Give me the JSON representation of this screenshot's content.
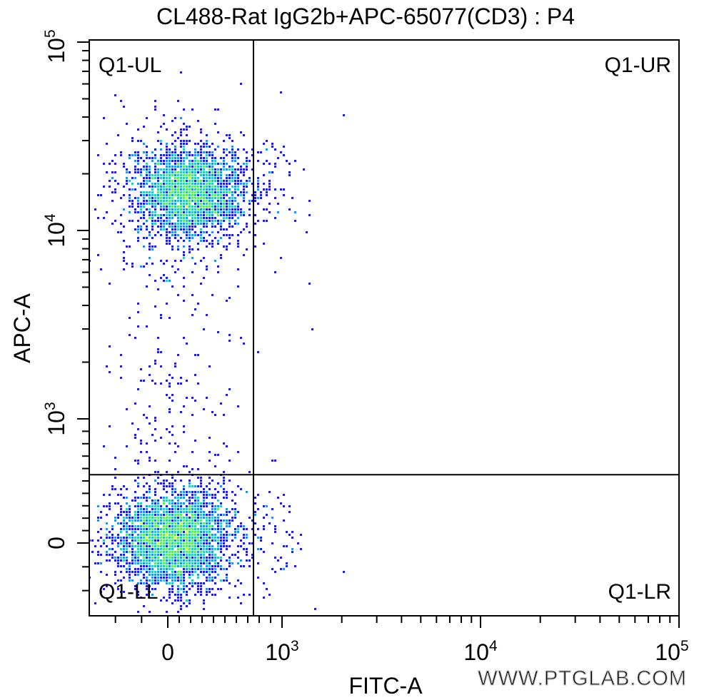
{
  "chart_data": {
    "type": "scatter",
    "title": "CL488-Rat IgG2b+APC-65077(CD3) : P4",
    "xlabel": "FITC-A",
    "ylabel": "APC-A",
    "x_scale": "biexponential",
    "y_scale": "biexponential",
    "xlim": [
      -300,
      100000
    ],
    "ylim": [
      -300,
      100000
    ],
    "x_ticks": [
      {
        "value": 0,
        "base": "0",
        "exp": ""
      },
      {
        "value": 1000,
        "base": "10",
        "exp": "3"
      },
      {
        "value": 10000,
        "base": "10",
        "exp": "4"
      },
      {
        "value": 100000,
        "base": "10",
        "exp": "5"
      }
    ],
    "y_ticks": [
      {
        "value": 0,
        "base": "0",
        "exp": ""
      },
      {
        "value": 1000,
        "base": "10",
        "exp": "3"
      },
      {
        "value": 10000,
        "base": "10",
        "exp": "4"
      },
      {
        "value": 100000,
        "base": "10",
        "exp": "5"
      }
    ],
    "gate": {
      "x": 750,
      "y": 550
    },
    "quadrants": [
      {
        "id": "ul",
        "label": "Q1-UL"
      },
      {
        "id": "ur",
        "label": "Q1-UR"
      },
      {
        "id": "ll",
        "label": "Q1-LL"
      },
      {
        "id": "lr",
        "label": "Q1-LR"
      }
    ],
    "populations": [
      {
        "name": "Q1-UL cluster",
        "center_x": 0,
        "center_y": 16000,
        "count": 2600
      },
      {
        "name": "Q1-LL cluster",
        "center_x": 20,
        "center_y": 0,
        "count": 3200
      }
    ],
    "density_colors": [
      "#1a1aff",
      "#00a0ff",
      "#00e0c0",
      "#40ff40",
      "#e0ff00",
      "#ff8000",
      "#ff0000"
    ],
    "grid": false,
    "legend": "none"
  },
  "watermark": "WWW.PTGLAB.COM"
}
